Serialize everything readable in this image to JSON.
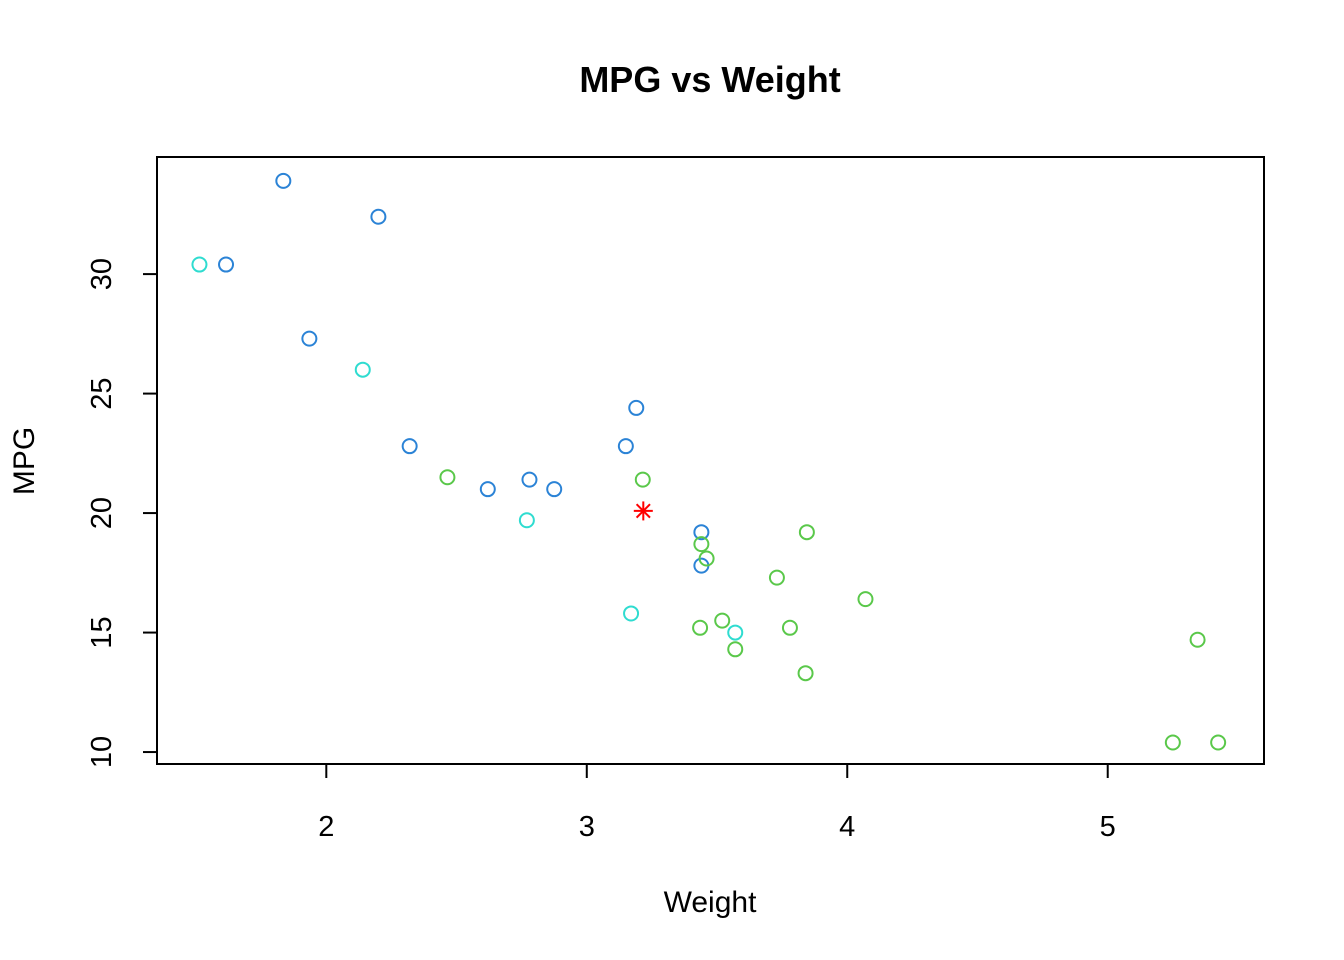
{
  "chart_data": {
    "type": "scatter",
    "title": "MPG vs Weight",
    "xlabel": "Weight",
    "ylabel": "MPG",
    "xlim": [
      1.35,
      5.6
    ],
    "ylim": [
      9.5,
      34.9
    ],
    "xticks": [
      2,
      3,
      4,
      5
    ],
    "yticks": [
      10,
      15,
      20,
      25,
      30
    ],
    "grid": false,
    "legend": "none",
    "series": [
      {
        "marker": "open-circle",
        "color": "#2b83d6",
        "points": [
          {
            "x": 1.835,
            "y": 33.9
          },
          {
            "x": 2.2,
            "y": 32.4
          },
          {
            "x": 1.615,
            "y": 30.4
          },
          {
            "x": 1.935,
            "y": 27.3
          },
          {
            "x": 2.32,
            "y": 22.8
          },
          {
            "x": 2.62,
            "y": 21.0
          },
          {
            "x": 2.78,
            "y": 21.4
          },
          {
            "x": 2.875,
            "y": 21.0
          },
          {
            "x": 3.15,
            "y": 22.8
          },
          {
            "x": 3.19,
            "y": 24.4
          },
          {
            "x": 3.44,
            "y": 19.2
          },
          {
            "x": 3.44,
            "y": 17.8
          }
        ]
      },
      {
        "marker": "open-circle",
        "color": "#2fdcd0",
        "points": [
          {
            "x": 1.513,
            "y": 30.4
          },
          {
            "x": 2.14,
            "y": 26.0
          },
          {
            "x": 2.77,
            "y": 19.7
          },
          {
            "x": 3.17,
            "y": 15.8
          },
          {
            "x": 3.57,
            "y": 15.0
          }
        ]
      },
      {
        "marker": "open-circle",
        "color": "#5ac84a",
        "points": [
          {
            "x": 2.465,
            "y": 21.5
          },
          {
            "x": 3.215,
            "y": 21.4
          },
          {
            "x": 3.44,
            "y": 18.7
          },
          {
            "x": 3.46,
            "y": 18.1
          },
          {
            "x": 3.57,
            "y": 14.3
          },
          {
            "x": 3.435,
            "y": 15.2
          },
          {
            "x": 3.52,
            "y": 15.5
          },
          {
            "x": 3.73,
            "y": 17.3
          },
          {
            "x": 3.78,
            "y": 15.2
          },
          {
            "x": 3.84,
            "y": 13.3
          },
          {
            "x": 3.845,
            "y": 19.2
          },
          {
            "x": 4.07,
            "y": 16.4
          },
          {
            "x": 5.25,
            "y": 10.4
          },
          {
            "x": 5.345,
            "y": 14.7
          },
          {
            "x": 5.424,
            "y": 10.4
          }
        ]
      },
      {
        "marker": "asterisk",
        "color": "#ff0000",
        "points": [
          {
            "x": 3.217,
            "y": 20.09
          }
        ]
      }
    ]
  }
}
